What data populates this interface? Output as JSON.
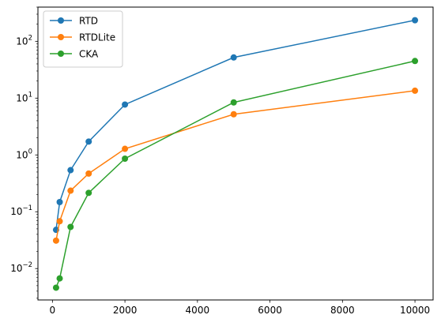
{
  "chart_data": {
    "type": "line",
    "title": "",
    "xlabel": "",
    "ylabel": "",
    "x": [
      100,
      200,
      500,
      1000,
      2000,
      5000,
      10000
    ],
    "xlim": [
      -400,
      10500
    ],
    "ylim": [
      0.0028,
      400
    ],
    "yscale": "log",
    "grid": false,
    "legend_position": "top-left",
    "x_ticks": [
      0,
      2000,
      4000,
      6000,
      8000,
      10000
    ],
    "x_tick_labels": [
      "0",
      "2000",
      "4000",
      "6000",
      "8000",
      "10000"
    ],
    "y_ticks": [
      0.01,
      0.1,
      1,
      10,
      100
    ],
    "y_tick_labels": [
      {
        "base": "10",
        "exp": "−2"
      },
      {
        "base": "10",
        "exp": "−1"
      },
      {
        "base": "10",
        "exp": "0"
      },
      {
        "base": "10",
        "exp": "1"
      },
      {
        "base": "10",
        "exp": "2"
      }
    ],
    "series": [
      {
        "name": "RTD",
        "color": "#1f77b4",
        "values": [
          0.048,
          0.148,
          0.54,
          1.72,
          7.7,
          52,
          235
        ]
      },
      {
        "name": "RTDLite",
        "color": "#ff7f0e",
        "values": [
          0.031,
          0.068,
          0.235,
          0.47,
          1.28,
          5.2,
          13.5
        ]
      },
      {
        "name": "CKA",
        "color": "#2ca02c",
        "values": [
          0.0046,
          0.0067,
          0.054,
          0.215,
          0.86,
          8.4,
          45
        ]
      }
    ]
  }
}
